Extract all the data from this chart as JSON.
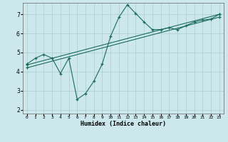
{
  "xlabel": "Humidex (Indice chaleur)",
  "background_color": "#cce8ec",
  "grid_color": "#aacccc",
  "line_color": "#1a6b5a",
  "xlim": [
    -0.5,
    23.5
  ],
  "ylim": [
    1.8,
    7.6
  ],
  "yticks": [
    2,
    3,
    4,
    5,
    6,
    7
  ],
  "xticks": [
    0,
    1,
    2,
    3,
    4,
    5,
    6,
    7,
    8,
    9,
    10,
    11,
    12,
    13,
    14,
    15,
    16,
    17,
    18,
    19,
    20,
    21,
    22,
    23
  ],
  "line1_x": [
    0,
    1,
    2,
    3,
    4,
    5,
    6,
    7,
    8,
    9,
    10,
    11,
    12,
    13,
    14,
    15,
    16,
    17,
    18,
    19,
    20,
    21,
    22,
    23
  ],
  "line1_y": [
    4.4,
    4.7,
    4.9,
    4.7,
    3.9,
    4.7,
    2.55,
    2.85,
    3.5,
    4.4,
    5.85,
    6.85,
    7.5,
    7.05,
    6.6,
    6.2,
    6.2,
    6.3,
    6.2,
    6.4,
    6.6,
    6.7,
    6.75,
    7.0
  ],
  "line2_x": [
    0,
    23
  ],
  "line2_y": [
    4.35,
    7.0
  ],
  "line3_x": [
    0,
    23
  ],
  "line3_y": [
    4.2,
    6.85
  ]
}
